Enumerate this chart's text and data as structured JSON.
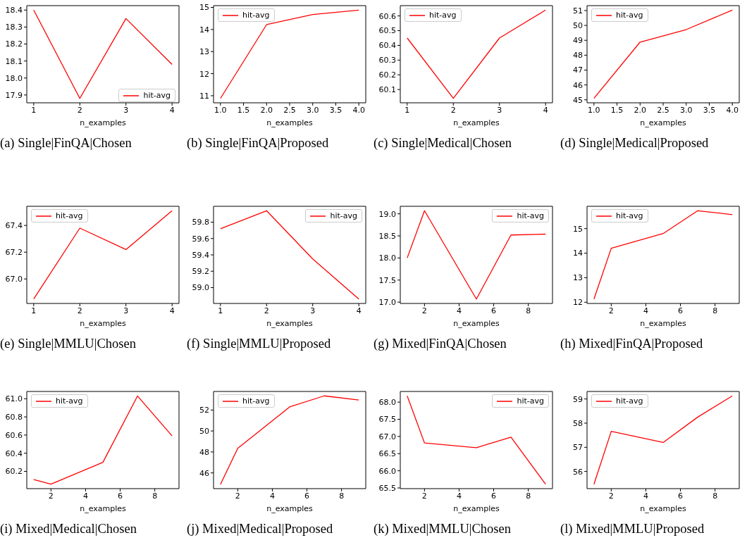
{
  "chart_data": [
    {
      "type": "line",
      "title": "(a) Single|FinQA|Chosen",
      "xlabel": "n_examples",
      "x": [
        1,
        2,
        3,
        4
      ],
      "xlim": [
        0.85,
        4.15
      ],
      "xticks": [
        1,
        2,
        3,
        4
      ],
      "ylim": [
        17.854,
        18.426
      ],
      "yticks": [
        17.9,
        {
          "value": 18,
          "label": "18.0"
        },
        18.1,
        18.2,
        18.3,
        18.4
      ],
      "legend": "bottom right",
      "series": [
        {
          "name": "hit-avg",
          "color": "#ff0000",
          "values": [
            18.4,
            17.88,
            18.35,
            18.08
          ]
        }
      ]
    },
    {
      "type": "line",
      "title": "(b) Single|FinQA|Proposed",
      "xlabel": "n_examples",
      "x": [
        1,
        2,
        3,
        4
      ],
      "xlim": [
        0.85,
        4.15
      ],
      "xticks": [
        {
          "value": 1,
          "label": "1.0"
        },
        1.5,
        {
          "value": 2,
          "label": "2.0"
        },
        2.5,
        {
          "value": 3,
          "label": "3.0"
        },
        3.5,
        {
          "value": 4,
          "label": "4.0"
        }
      ],
      "ylim": [
        10.68,
        15.08
      ],
      "yticks": [
        11,
        12,
        13,
        14,
        15
      ],
      "legend": "top left",
      "series": [
        {
          "name": "hit-avg",
          "color": "#ff0000",
          "values": [
            10.88,
            14.22,
            14.68,
            14.88
          ]
        }
      ]
    },
    {
      "type": "line",
      "title": "(c) Single|Medical|Chosen",
      "xlabel": "n_examples",
      "x": [
        1,
        2,
        3,
        4
      ],
      "xlim": [
        0.85,
        4.15
      ],
      "xticks": [
        1,
        2,
        3,
        4
      ],
      "ylim": [
        60.01,
        60.67
      ],
      "yticks": [
        60.1,
        60.2,
        60.3,
        60.4,
        60.5,
        60.6
      ],
      "legend": "top left",
      "series": [
        {
          "name": "hit-avg",
          "color": "#ff0000",
          "values": [
            60.45,
            60.04,
            60.45,
            60.64
          ]
        }
      ]
    },
    {
      "type": "line",
      "title": "(d) Single|Medical|Proposed",
      "xlabel": "n_examples",
      "x": [
        1,
        2,
        3,
        4
      ],
      "xlim": [
        0.85,
        4.15
      ],
      "xticks": [
        {
          "value": 1,
          "label": "1.0"
        },
        1.5,
        {
          "value": 2,
          "label": "2.0"
        },
        2.5,
        {
          "value": 3,
          "label": "3.0"
        },
        3.5,
        {
          "value": 4,
          "label": "4.0"
        }
      ],
      "ylim": [
        44.8,
        51.33
      ],
      "yticks": [
        45,
        46,
        47,
        48,
        49,
        50,
        51
      ],
      "legend": "top left",
      "series": [
        {
          "name": "hit-avg",
          "color": "#ff0000",
          "values": [
            45.1,
            48.88,
            49.72,
            51.03
          ]
        }
      ]
    },
    {
      "type": "line",
      "title": "(e) Single|MMLU|Chosen",
      "xlabel": "n_examples",
      "x": [
        1,
        2,
        3,
        4
      ],
      "xlim": [
        0.85,
        4.15
      ],
      "xticks": [
        1,
        2,
        3,
        4
      ],
      "ylim": [
        66.817,
        67.543
      ],
      "yticks": [
        {
          "value": 67,
          "label": "67.0"
        },
        67.2,
        67.4
      ],
      "legend": "top left",
      "series": [
        {
          "name": "hit-avg",
          "color": "#ff0000",
          "values": [
            66.85,
            67.38,
            67.22,
            67.51
          ]
        }
      ]
    },
    {
      "type": "line",
      "title": "(f) Single|MMLU|Proposed",
      "xlabel": "n_examples",
      "x": [
        1,
        2,
        3,
        4
      ],
      "xlim": [
        0.85,
        4.15
      ],
      "xticks": [
        1,
        2,
        3,
        4
      ],
      "ylim": [
        58.806,
        59.994
      ],
      "yticks": [
        {
          "value": 59,
          "label": "59.0"
        },
        59.2,
        59.4,
        59.6,
        59.8
      ],
      "legend": "top right",
      "series": [
        {
          "name": "hit-avg",
          "color": "#ff0000",
          "values": [
            59.72,
            59.94,
            59.35,
            58.86
          ]
        }
      ]
    },
    {
      "type": "line",
      "title": "(g) Mixed|FinQA|Chosen",
      "xlabel": "n_examples",
      "x": [
        1,
        2,
        5,
        7,
        9
      ],
      "xlim": [
        0.6,
        9.4
      ],
      "xticks": [
        2,
        4,
        6,
        8
      ],
      "ylim": [
        16.97,
        19.17
      ],
      "yticks": [
        {
          "value": 17,
          "label": "17.0"
        },
        17.5,
        {
          "value": 18,
          "label": "18.0"
        },
        18.5,
        {
          "value": 19,
          "label": "19.0"
        }
      ],
      "legend": "top right",
      "series": [
        {
          "name": "hit-avg",
          "color": "#ff0000",
          "values": [
            18.0,
            19.07,
            17.07,
            18.52,
            18.54
          ]
        }
      ]
    },
    {
      "type": "line",
      "title": "(h) Mixed|FinQA|Proposed",
      "xlabel": "n_examples",
      "x": [
        1,
        2,
        5,
        7,
        9
      ],
      "xlim": [
        0.6,
        9.4
      ],
      "xticks": [
        2,
        4,
        6,
        8
      ],
      "ylim": [
        11.95,
        15.91
      ],
      "yticks": [
        12,
        13,
        14,
        15
      ],
      "legend": "top left",
      "series": [
        {
          "name": "hit-avg",
          "color": "#ff0000",
          "values": [
            12.13,
            14.2,
            14.8,
            15.73,
            15.57
          ]
        }
      ]
    },
    {
      "type": "line",
      "title": "(i) Mixed|Medical|Chosen",
      "xlabel": "n_examples",
      "x": [
        1,
        2,
        5,
        7,
        9
      ],
      "xlim": [
        0.6,
        9.4
      ],
      "xticks": [
        2,
        4,
        6,
        8
      ],
      "ylim": [
        60.01,
        61.08
      ],
      "yticks": [
        60.2,
        60.4,
        60.6,
        60.8,
        {
          "value": 61,
          "label": "61.0"
        }
      ],
      "legend": "top left",
      "series": [
        {
          "name": "hit-avg",
          "color": "#ff0000",
          "values": [
            60.11,
            60.06,
            60.3,
            61.03,
            60.59
          ]
        }
      ]
    },
    {
      "type": "line",
      "title": "(j) Mixed|Medical|Proposed",
      "xlabel": "n_examples",
      "x": [
        1,
        2,
        5,
        7,
        9
      ],
      "xlim": [
        0.6,
        9.4
      ],
      "xticks": [
        2,
        4,
        6,
        8
      ],
      "ylim": [
        44.5,
        53.77
      ],
      "yticks": [
        46,
        48,
        50,
        52
      ],
      "legend": "top left",
      "series": [
        {
          "name": "hit-avg",
          "color": "#ff0000",
          "values": [
            44.9,
            48.35,
            52.3,
            53.35,
            52.95
          ]
        }
      ]
    },
    {
      "type": "line",
      "title": "(k) Mixed|MMLU|Chosen",
      "xlabel": "n_examples",
      "x": [
        1,
        2,
        5,
        7,
        9
      ],
      "xlim": [
        0.6,
        9.4
      ],
      "xticks": [
        2,
        4,
        6,
        8
      ],
      "ylim": [
        65.48,
        68.31
      ],
      "yticks": [
        65.5,
        {
          "value": 66,
          "label": "66.0"
        },
        66.5,
        {
          "value": 67,
          "label": "67.0"
        },
        67.5,
        {
          "value": 68,
          "label": "68.0"
        }
      ],
      "legend": "top right",
      "series": [
        {
          "name": "hit-avg",
          "color": "#ff0000",
          "values": [
            68.18,
            66.81,
            66.67,
            66.98,
            65.61
          ]
        }
      ]
    },
    {
      "type": "line",
      "title": "(l) Mixed|MMLU|Proposed",
      "xlabel": "n_examples",
      "x": [
        1,
        2,
        5,
        7,
        9
      ],
      "xlim": [
        0.6,
        9.4
      ],
      "xticks": [
        2,
        4,
        6,
        8
      ],
      "ylim": [
        55.29,
        59.31
      ],
      "yticks": [
        56,
        57,
        58,
        59
      ],
      "legend": "top left",
      "series": [
        {
          "name": "hit-avg",
          "color": "#ff0000",
          "values": [
            55.47,
            57.66,
            57.2,
            58.25,
            59.13
          ]
        }
      ]
    }
  ]
}
